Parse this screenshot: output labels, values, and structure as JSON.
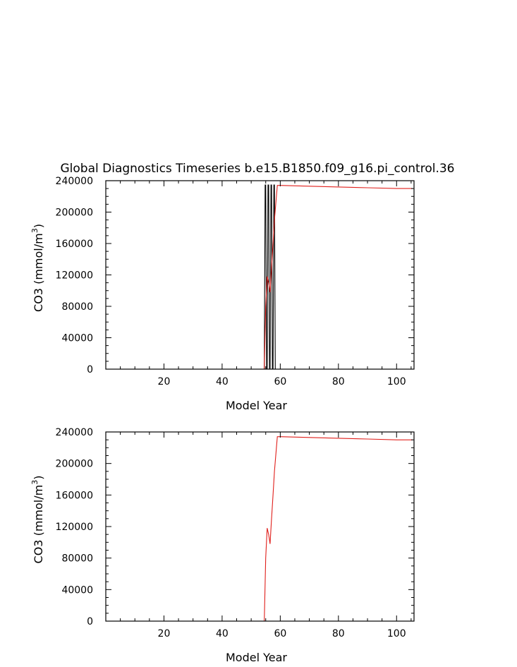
{
  "title": "Global Diagnostics Timeseries b.e15.B1850.f09_g16.pi_control.36",
  "colors": {
    "background": "#ffffff",
    "frame": "#000000",
    "red_series": "#e0201c",
    "black_series": "#000000"
  },
  "chart_data": [
    {
      "type": "line",
      "title": "Global Diagnostics Timeseries b.e15.B1850.f09_g16.pi_control.36",
      "xlabel": "Model Year",
      "ylabel_main": "CO3 (mmol/m",
      "ylabel_sup": "3",
      "ylabel_tail": ")",
      "xlim": [
        0,
        106
      ],
      "ylim": [
        0,
        240000
      ],
      "xticks": [
        20,
        40,
        60,
        80,
        100
      ],
      "yticks": [
        0,
        40000,
        80000,
        120000,
        160000,
        200000,
        240000
      ],
      "grid": false,
      "series": [
        {
          "color": "black",
          "x": [
            54.5,
            54.8,
            55.0,
            55.3,
            55.5,
            55.8,
            56.0,
            56.3,
            56.5,
            56.8,
            57.0,
            57.3,
            57.5,
            57.8,
            58.0,
            58.3
          ],
          "y": [
            0,
            234500,
            234500,
            0,
            0,
            234500,
            234500,
            0,
            0,
            234500,
            234500,
            0,
            0,
            234500,
            234500,
            0
          ]
        },
        {
          "color": "red",
          "x": [
            54.5,
            55.0,
            55.5,
            56.0,
            56.5,
            57.0,
            57.5,
            58.0,
            59.0,
            60,
            70,
            80,
            90,
            100,
            105.5
          ],
          "y": [
            0,
            80000,
            118000,
            110000,
            98000,
            130000,
            160000,
            190000,
            234000,
            234000,
            233000,
            232000,
            231000,
            230000,
            230000
          ]
        }
      ]
    },
    {
      "type": "line",
      "xlabel": "Model Year",
      "ylabel_main": "CO3 (mmol/m",
      "ylabel_sup": "3",
      "ylabel_tail": ")",
      "xlim": [
        0,
        106
      ],
      "ylim": [
        0,
        240000
      ],
      "xticks": [
        20,
        40,
        60,
        80,
        100
      ],
      "yticks": [
        0,
        40000,
        80000,
        120000,
        160000,
        200000,
        240000
      ],
      "grid": false,
      "series": [
        {
          "color": "red",
          "x": [
            54.5,
            55.0,
            55.5,
            56.0,
            56.5,
            57.0,
            57.5,
            58.0,
            59.0,
            60,
            70,
            80,
            90,
            100,
            105.5
          ],
          "y": [
            0,
            80000,
            118000,
            110000,
            98000,
            130000,
            160000,
            190000,
            234000,
            234000,
            233000,
            232000,
            231000,
            230000,
            230000
          ]
        }
      ]
    }
  ]
}
